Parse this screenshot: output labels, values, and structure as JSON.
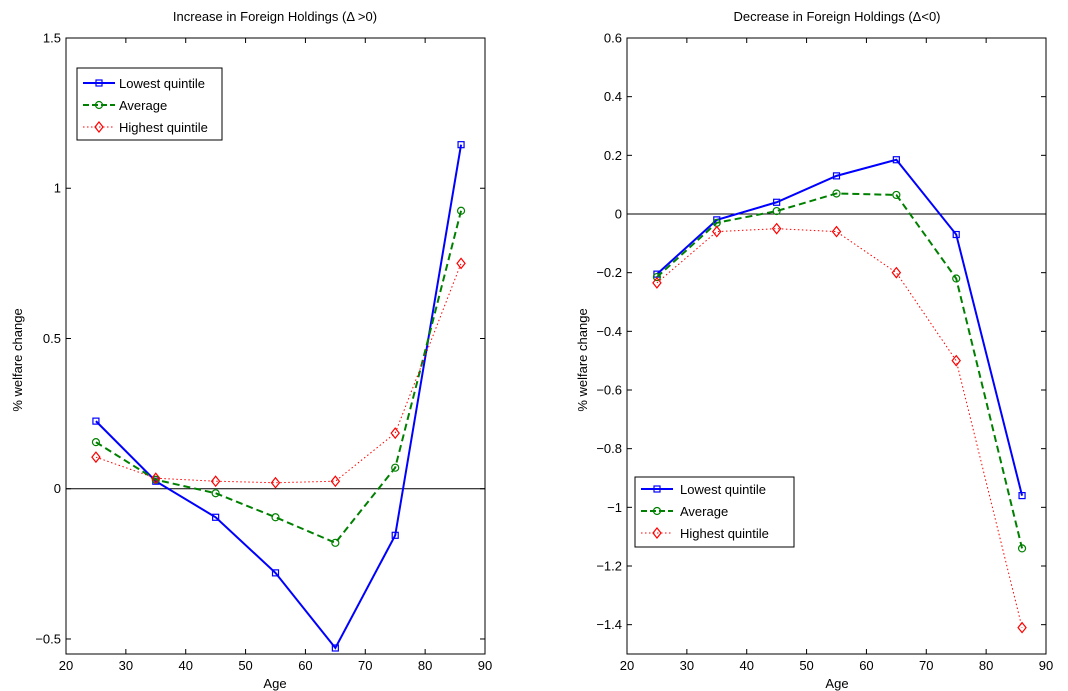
{
  "chart_data": [
    {
      "type": "line",
      "title": "Increase in Foreign Holdings (Δ >0)",
      "xlabel": "Age",
      "ylabel": "% welfare change",
      "xlim": [
        20,
        90
      ],
      "ylim": [
        -0.55,
        1.5
      ],
      "xticks": [
        20,
        30,
        40,
        50,
        60,
        70,
        80,
        90
      ],
      "yticks": [
        -0.5,
        0,
        0.5,
        1,
        1.5
      ],
      "ytick_labels": [
        "−0.5",
        "0",
        "0.5",
        "1",
        "1.5"
      ],
      "zero_line": true,
      "grid": false,
      "legend_position": "top-left",
      "x": [
        25,
        35,
        45,
        55,
        65,
        75,
        86
      ],
      "series": [
        {
          "name": "Lowest quintile",
          "color": "#0000ff",
          "style": "solid",
          "marker": "square",
          "values": [
            0.225,
            0.025,
            -0.095,
            -0.28,
            -0.53,
            -0.155,
            1.145
          ]
        },
        {
          "name": "Average",
          "color": "#008000",
          "style": "dashed",
          "marker": "circle",
          "values": [
            0.155,
            0.03,
            -0.015,
            -0.095,
            -0.18,
            0.07,
            0.925
          ]
        },
        {
          "name": "Highest quintile",
          "color": "#ff0000",
          "style": "dotted",
          "marker": "diamond",
          "values": [
            0.105,
            0.035,
            0.025,
            0.02,
            0.025,
            0.185,
            0.75
          ]
        }
      ]
    },
    {
      "type": "line",
      "title": "Decrease in Foreign Holdings (Δ<0)",
      "xlabel": "Age",
      "ylabel": "% welfare change",
      "xlim": [
        20,
        90
      ],
      "ylim": [
        -1.5,
        0.6
      ],
      "xticks": [
        20,
        30,
        40,
        50,
        60,
        70,
        80,
        90
      ],
      "yticks": [
        -1.4,
        -1.2,
        -1,
        -0.8,
        -0.6,
        -0.4,
        -0.2,
        0,
        0.2,
        0.4,
        0.6
      ],
      "ytick_labels": [
        "−1.4",
        "−1.2",
        "−1",
        "−0.8",
        "−0.6",
        "−0.4",
        "−0.2",
        "0",
        "0.2",
        "0.4",
        "0.6"
      ],
      "zero_line": true,
      "grid": false,
      "legend_position": "bottom-left",
      "x": [
        25,
        35,
        45,
        55,
        65,
        75,
        86
      ],
      "series": [
        {
          "name": "Lowest quintile",
          "color": "#0000ff",
          "style": "solid",
          "marker": "square",
          "values": [
            -0.205,
            -0.02,
            0.04,
            0.13,
            0.185,
            -0.07,
            -0.96
          ]
        },
        {
          "name": "Average",
          "color": "#008000",
          "style": "dashed",
          "marker": "circle",
          "values": [
            -0.215,
            -0.03,
            0.01,
            0.07,
            0.065,
            -0.22,
            -1.14
          ]
        },
        {
          "name": "Highest quintile",
          "color": "#ff0000",
          "style": "dotted",
          "marker": "diamond",
          "values": [
            -0.235,
            -0.06,
            -0.05,
            -0.06,
            -0.2,
            -0.5,
            -1.41
          ]
        }
      ]
    }
  ]
}
